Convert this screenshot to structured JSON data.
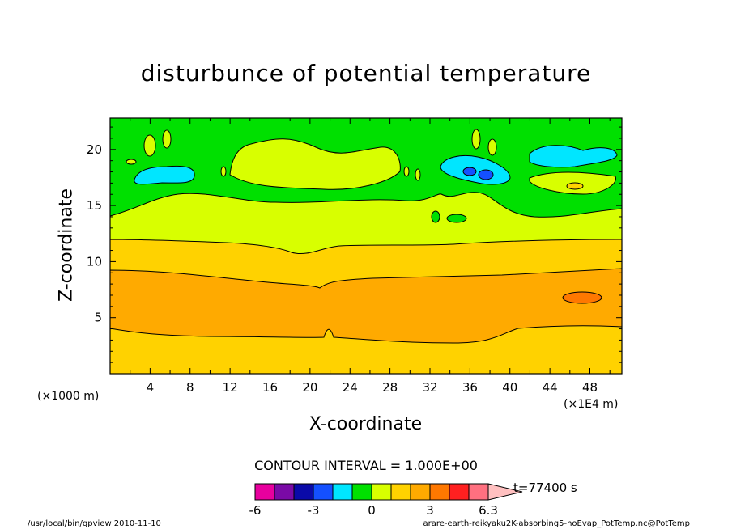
{
  "chart_data": {
    "type": "heatmap",
    "title": "disturbunce of potential temperature",
    "xlabel": "X-coordinate",
    "ylabel": "Z-coordinate",
    "x_unit_left": "(×1000 m)",
    "x_unit_right": "(×1E4 m)",
    "xlim": [
      0,
      51.2
    ],
    "ylim": [
      0,
      22.8
    ],
    "x_ticks": [
      4,
      8,
      12,
      16,
      20,
      24,
      28,
      32,
      36,
      40,
      44,
      48
    ],
    "y_ticks": [
      5,
      10,
      15,
      20
    ],
    "contour_interval_label": "CONTOUR INTERVAL = 1.000E+00",
    "time_label": "t=77400 s",
    "colorbar": {
      "ticks": [
        "-6",
        "-3",
        "0",
        "3",
        "6.3"
      ],
      "colors": [
        "#e8009e",
        "#7a0aa6",
        "#0a0aa8",
        "#1450ff",
        "#00e6ff",
        "#00e000",
        "#d8ff00",
        "#ffd200",
        "#ffaa00",
        "#ff7800",
        "#ff2020",
        "#ff7080",
        "#ffc0c0"
      ]
    },
    "bands": [
      {
        "z_from": 0,
        "z_to": 4.0,
        "level": "1 to 2",
        "color": "#ffd200"
      },
      {
        "z_from": 4.0,
        "z_to": 9.2,
        "level": "2 to 3",
        "color": "#ffaa00"
      },
      {
        "z_from": 9.2,
        "z_to": 12.0,
        "level": "1 to 2",
        "color": "#ffd200"
      },
      {
        "z_from": 12.0,
        "z_to": 15.2,
        "level": "0 to 1",
        "color": "#d8ff00"
      },
      {
        "z_from": 15.2,
        "z_to": 22.8,
        "level": "-1 to 0",
        "color": "#00e000"
      }
    ],
    "features": [
      {
        "x": 16,
        "z": 19.5,
        "level": "0 to 1",
        "color": "#d8ff00"
      },
      {
        "x": 6,
        "z": 18.0,
        "level": "-2 to -1",
        "color": "#00e6ff"
      },
      {
        "x": 37,
        "z": 18.0,
        "level": "-2 to -1",
        "color": "#00e6ff"
      },
      {
        "x": 37,
        "z": 17.9,
        "level": "-3 to -2",
        "color": "#1450ff"
      },
      {
        "x": 47,
        "z": 19.5,
        "level": "-2 to -1",
        "color": "#00e6ff"
      },
      {
        "x": 46,
        "z": 7.0,
        "level": "3 to 4",
        "color": "#ff7800"
      }
    ]
  },
  "footer": {
    "left": "/usr/local/bin/gpview  2010-11-10",
    "right": "arare-earth-reikyaku2K-absorbing5-noEvap_PotTemp.nc@PotTemp"
  }
}
